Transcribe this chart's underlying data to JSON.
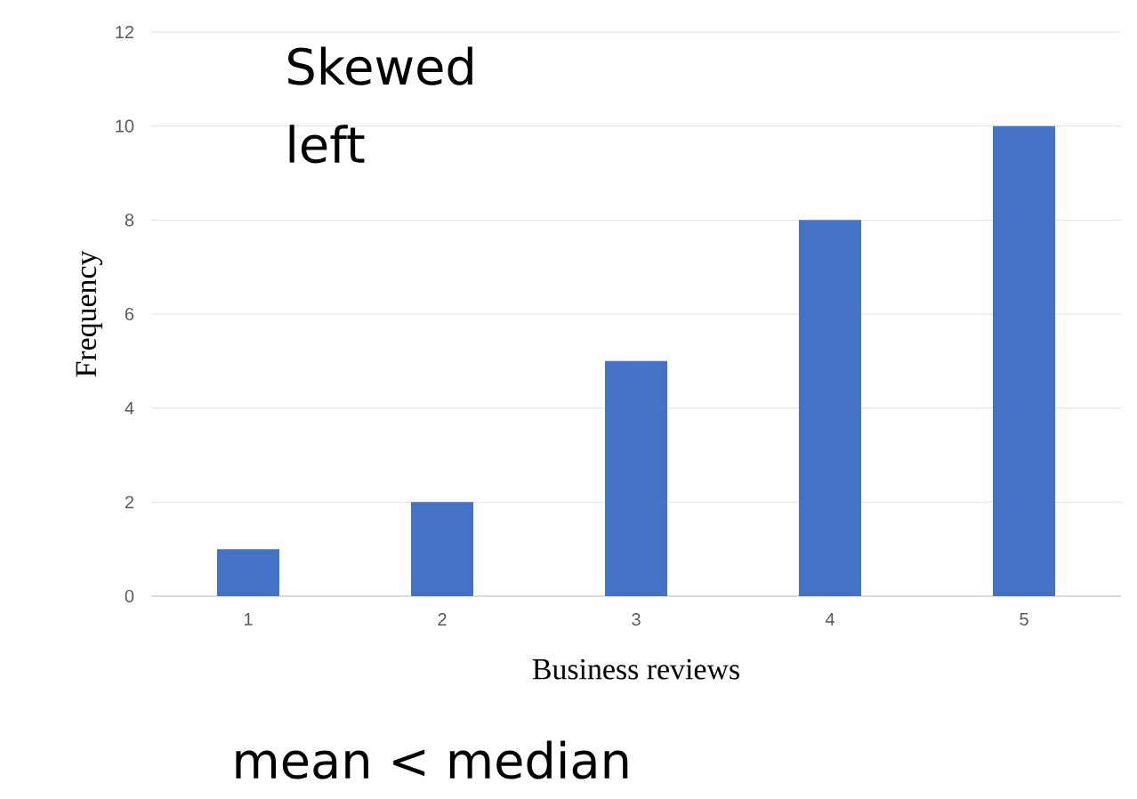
{
  "chart_data": {
    "type": "bar",
    "categories": [
      "1",
      "2",
      "3",
      "4",
      "5"
    ],
    "values": [
      1,
      2,
      5,
      8,
      10
    ],
    "color": "#4472c4",
    "ylim": [
      0,
      12
    ],
    "yticks": [
      0,
      2,
      4,
      6,
      8,
      10,
      12
    ],
    "grid": "y",
    "xlabel": "Business reviews",
    "ylabel": "Frequency",
    "annotations": [
      "Skewed left",
      "mean < median"
    ]
  }
}
